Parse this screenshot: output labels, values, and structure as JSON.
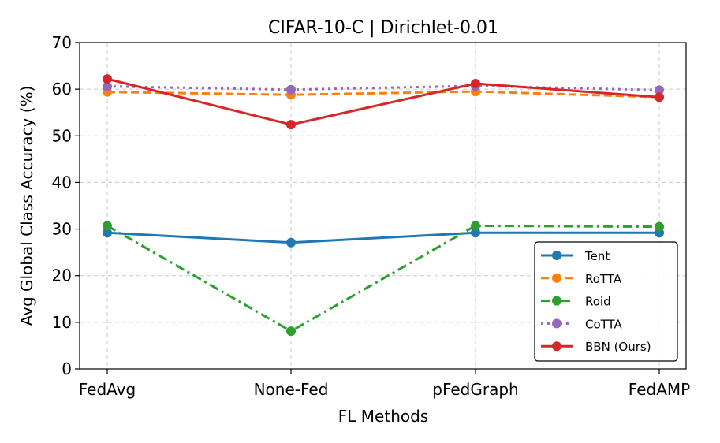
{
  "chart_data": {
    "type": "line",
    "title": "CIFAR-10-C | Dirichlet-0.01",
    "xlabel": "FL Methods",
    "ylabel": "Avg Global Class Accuracy (%)",
    "categories": [
      "FedAvg",
      "None-Fed",
      "pFedGraph",
      "FedAMP"
    ],
    "ylim": [
      0,
      70
    ],
    "yticks": [
      0,
      10,
      20,
      30,
      40,
      50,
      60,
      70
    ],
    "grid": true,
    "legend_position": "lower-right",
    "series": [
      {
        "name": "Tent",
        "values": [
          29.2,
          27.1,
          29.2,
          29.2
        ],
        "color": "#1f77b4",
        "dash": "solid"
      },
      {
        "name": "RoTTA",
        "values": [
          59.4,
          58.8,
          59.5,
          58.3
        ],
        "color": "#ff7f0e",
        "dash": "dashed"
      },
      {
        "name": "Roid",
        "values": [
          30.7,
          8.1,
          30.7,
          30.5
        ],
        "color": "#2ca02c",
        "dash": "dashdot"
      },
      {
        "name": "CoTTA",
        "values": [
          60.6,
          59.9,
          60.7,
          59.8
        ],
        "color": "#9467bd",
        "dash": "dotted"
      },
      {
        "name": "BBN (Ours)",
        "values": [
          62.2,
          52.4,
          61.2,
          58.3
        ],
        "color": "#d62728",
        "dash": "solid"
      }
    ]
  }
}
